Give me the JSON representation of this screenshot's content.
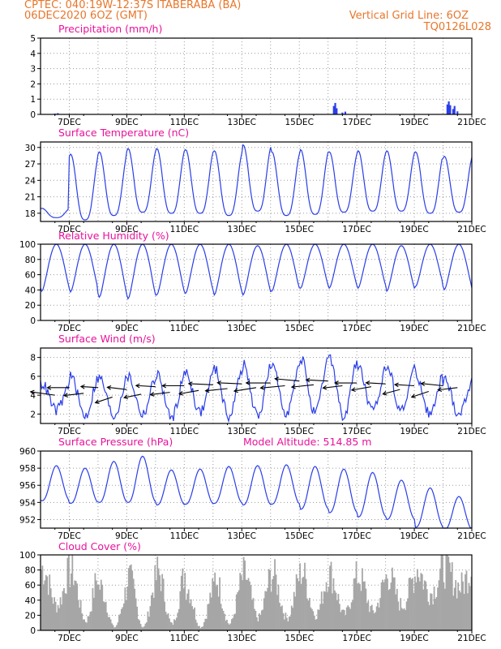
{
  "header": {
    "line1_left": "CPTEC:   040:19W-12:37S   ITABERABA (BA)",
    "line2_left": "06DEC2020 6OZ (GMT)",
    "line2_right": "Vertical Grid Line: 6OZ",
    "line3_right": "TQ0126L028"
  },
  "colors": {
    "header": "#e8762b",
    "panel_title": "#e8129a",
    "line": "#2a3ee8",
    "wind_arrow": "#000000",
    "cloud": "#a6a6a6"
  },
  "chart_data": [
    {
      "type": "bar",
      "title": "Precipitation (mm/h)",
      "x_range": [
        6,
        21
      ],
      "x_ticks": [
        "7DEC",
        "9DEC",
        "11DEC",
        "13DEC",
        "15DEC",
        "17DEC",
        "19DEC",
        "21DEC"
      ],
      "y_ticks": [
        "0",
        "1",
        "2",
        "3",
        "4",
        "5"
      ],
      "ylim": [
        0,
        5
      ],
      "grid": true,
      "series": [
        {
          "x": [
            6.5,
            6.6,
            7.2,
            7.5,
            8.3,
            9.1,
            10.2,
            11.4,
            12.6,
            13.6,
            14.7,
            15.6,
            16.2,
            16.25,
            16.3,
            16.5,
            16.6,
            17.4,
            18.6,
            20.15,
            20.2,
            20.25,
            20.35,
            20.4,
            20.5
          ],
          "values": [
            0.05,
            0.08,
            0.03,
            0.03,
            0.02,
            0.03,
            0.02,
            0.03,
            0.02,
            0.03,
            0.02,
            0.03,
            0.55,
            0.75,
            0.4,
            0.12,
            0.18,
            0.03,
            0.03,
            0.65,
            0.85,
            0.6,
            0.35,
            0.55,
            0.2
          ]
        }
      ]
    },
    {
      "type": "line",
      "title": "Surface Temperature (nC)",
      "x_range": [
        6,
        21
      ],
      "x_ticks": [
        "7DEC",
        "9DEC",
        "11DEC",
        "13DEC",
        "15DEC",
        "17DEC",
        "19DEC",
        "21DEC"
      ],
      "y_ticks": [
        "18",
        "21",
        "24",
        "27",
        "30"
      ],
      "ylim": [
        16.5,
        31
      ],
      "grid": true,
      "daily_max": [
        18.9,
        28.8,
        29.2,
        29.8,
        29.8,
        29.6,
        29.4,
        30.5,
        29.2,
        29.6,
        29.2,
        29.4,
        29.4,
        29.2,
        28.4,
        28.6
      ],
      "daily_min": [
        17.2,
        16.8,
        17.6,
        18.2,
        18.0,
        18.0,
        17.6,
        18.4,
        17.6,
        17.8,
        18.2,
        18.4,
        18.4,
        18.0,
        18.2,
        18.2
      ]
    },
    {
      "type": "line",
      "title": "Relative Humidity (%)",
      "x_range": [
        6,
        21
      ],
      "x_ticks": [
        "7DEC",
        "9DEC",
        "11DEC",
        "13DEC",
        "15DEC",
        "17DEC",
        "19DEC",
        "21DEC"
      ],
      "y_ticks": [
        "0",
        "20",
        "40",
        "60",
        "80",
        "100"
      ],
      "ylim": [
        0,
        100
      ],
      "grid": true,
      "daily_max": [
        100,
        100,
        100,
        100,
        100,
        100,
        100,
        98,
        100,
        100,
        100,
        100,
        98,
        100,
        100,
        100
      ],
      "daily_min": [
        38,
        37,
        30,
        28,
        33,
        35,
        33,
        33,
        38,
        42,
        42,
        42,
        38,
        44,
        40,
        38
      ]
    },
    {
      "type": "line",
      "title": "Surface Wind (m/s)",
      "x_range": [
        6,
        21
      ],
      "x_ticks": [
        "7DEC",
        "9DEC",
        "11DEC",
        "13DEC",
        "15DEC",
        "17DEC",
        "19DEC",
        "21DEC"
      ],
      "y_ticks": [
        "2",
        "4",
        "6",
        "8"
      ],
      "ylim": [
        1,
        9
      ],
      "grid": true,
      "daily_max": [
        5.2,
        6.0,
        5.8,
        6.0,
        6.2,
        6.4,
        6.8,
        7.2,
        7.0,
        8.0,
        8.0,
        7.0,
        7.0,
        6.2,
        5.6,
        5.8
      ],
      "daily_min": [
        2.4,
        1.8,
        1.8,
        2.0,
        1.6,
        2.2,
        1.8,
        1.8,
        2.2,
        2.0,
        1.6,
        2.2,
        2.4,
        2.0,
        2.0,
        2.8
      ],
      "wind_arrows": {
        "x": [
          6.5,
          7.0,
          7.5,
          8.0,
          8.5,
          9.0,
          9.5,
          10.0,
          10.5,
          11.0,
          11.5,
          12.0,
          12.5,
          13.0,
          13.5,
          14.0,
          14.5,
          15.0,
          15.5,
          16.0,
          16.5,
          17.0,
          17.5,
          18.0,
          18.5,
          19.0,
          19.5,
          20.0,
          20.5
        ],
        "y": [
          4.0,
          4.8,
          4.2,
          4.8,
          3.8,
          4.6,
          4.1,
          4.9,
          4.3,
          5.0,
          4.5,
          5.1,
          4.7,
          5.2,
          4.8,
          5.3,
          5.0,
          5.5,
          5.1,
          5.5,
          5.0,
          5.3,
          4.9,
          5.2,
          4.6,
          5.0,
          4.4,
          5.0,
          4.8
        ],
        "u": [
          -1.0,
          -0.9,
          -0.8,
          -0.7,
          -0.7,
          -0.8,
          -0.7,
          -0.8,
          -0.8,
          -0.9,
          -0.8,
          -1.0,
          -0.9,
          -1.0,
          -0.9,
          -1.0,
          -1.0,
          -1.0,
          -0.9,
          -0.9,
          -0.8,
          -0.9,
          -0.8,
          -0.8,
          -0.7,
          -0.8,
          -0.7,
          -0.9,
          -0.8
        ],
        "v": [
          0.3,
          0.0,
          -0.2,
          0.1,
          -0.5,
          0.2,
          -0.3,
          0.1,
          -0.2,
          0.0,
          -0.3,
          0.1,
          -0.2,
          0.1,
          -0.3,
          0.0,
          -0.2,
          0.2,
          -0.2,
          0.1,
          -0.2,
          0.0,
          -0.3,
          0.1,
          -0.4,
          0.1,
          -0.5,
          0.2,
          -0.2
        ]
      }
    },
    {
      "type": "line",
      "title": "Surface Pressure (hPa)",
      "annotation": "Model Altitude: 514.85 m",
      "x_range": [
        6,
        21
      ],
      "x_ticks": [
        "7DEC",
        "9DEC",
        "11DEC",
        "13DEC",
        "15DEC",
        "17DEC",
        "19DEC",
        "21DEC"
      ],
      "y_ticks": [
        "952",
        "954",
        "956",
        "958",
        "960"
      ],
      "ylim": [
        951,
        960
      ],
      "grid": true,
      "daily_max": [
        958.3,
        958.0,
        958.8,
        959.4,
        957.8,
        957.9,
        958.2,
        958.3,
        958.4,
        958.2,
        957.9,
        957.5,
        956.6,
        955.7,
        954.7,
        954.5
      ],
      "daily_min": [
        954.2,
        953.9,
        954.0,
        954.0,
        953.7,
        953.8,
        953.9,
        953.7,
        953.8,
        953.2,
        952.8,
        952.3,
        952.0,
        951.1,
        950.8,
        951.0
      ]
    },
    {
      "type": "area",
      "title": "Cloud Cover (%)",
      "x_range": [
        6,
        21
      ],
      "x_ticks": [
        "7DEC",
        "9DEC",
        "11DEC",
        "13DEC",
        "15DEC",
        "17DEC",
        "19DEC",
        "21DEC"
      ],
      "y_ticks": [
        "0",
        "20",
        "40",
        "60",
        "80",
        "100"
      ],
      "ylim": [
        0,
        100
      ],
      "grid": true,
      "daily_max": [
        100,
        95,
        70,
        85,
        95,
        70,
        85,
        90,
        90,
        95,
        90,
        85,
        90,
        100,
        100,
        100
      ],
      "daily_min": [
        40,
        15,
        5,
        5,
        10,
        5,
        10,
        20,
        20,
        25,
        25,
        30,
        40,
        60,
        70,
        85
      ]
    }
  ]
}
